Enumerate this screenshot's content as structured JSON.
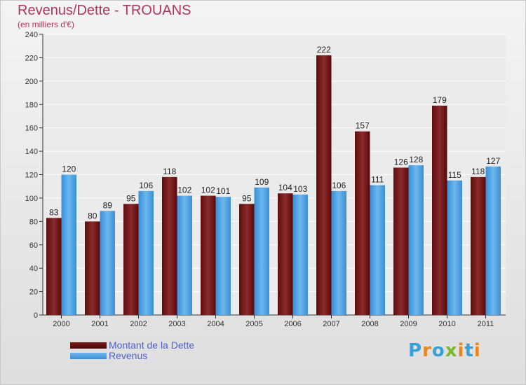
{
  "chart_data": {
    "type": "bar",
    "title": "Revenus/Dette - TROUANS",
    "subtitle": "(en milliers d'€)",
    "categories": [
      "2000",
      "2001",
      "2002",
      "2003",
      "2004",
      "2005",
      "2006",
      "2007",
      "2008",
      "2009",
      "2010",
      "2011"
    ],
    "series": [
      {
        "name": "Montant de la Dette",
        "values": [
          83,
          80,
          95,
          118,
          102,
          95,
          104,
          222,
          157,
          126,
          179,
          118
        ],
        "color": "#6b1212"
      },
      {
        "name": "Revenus",
        "values": [
          120,
          89,
          106,
          102,
          101,
          109,
          103,
          106,
          111,
          128,
          115,
          127
        ],
        "color": "#4ea3e6"
      }
    ],
    "ylim": [
      0,
      240
    ],
    "yticks": [
      0,
      20,
      40,
      60,
      80,
      100,
      120,
      140,
      160,
      180,
      200,
      220,
      240
    ],
    "grid": true,
    "legend_position": "bottom-left"
  },
  "logo": {
    "letters": [
      "P",
      "r",
      "o",
      "x",
      "i",
      "t",
      "i"
    ],
    "colors": [
      "#3aa0d8",
      "#e8871e",
      "#3aa0d8",
      "#7ab929",
      "#e8871e",
      "#3aa0d8",
      "#e8871e"
    ]
  }
}
